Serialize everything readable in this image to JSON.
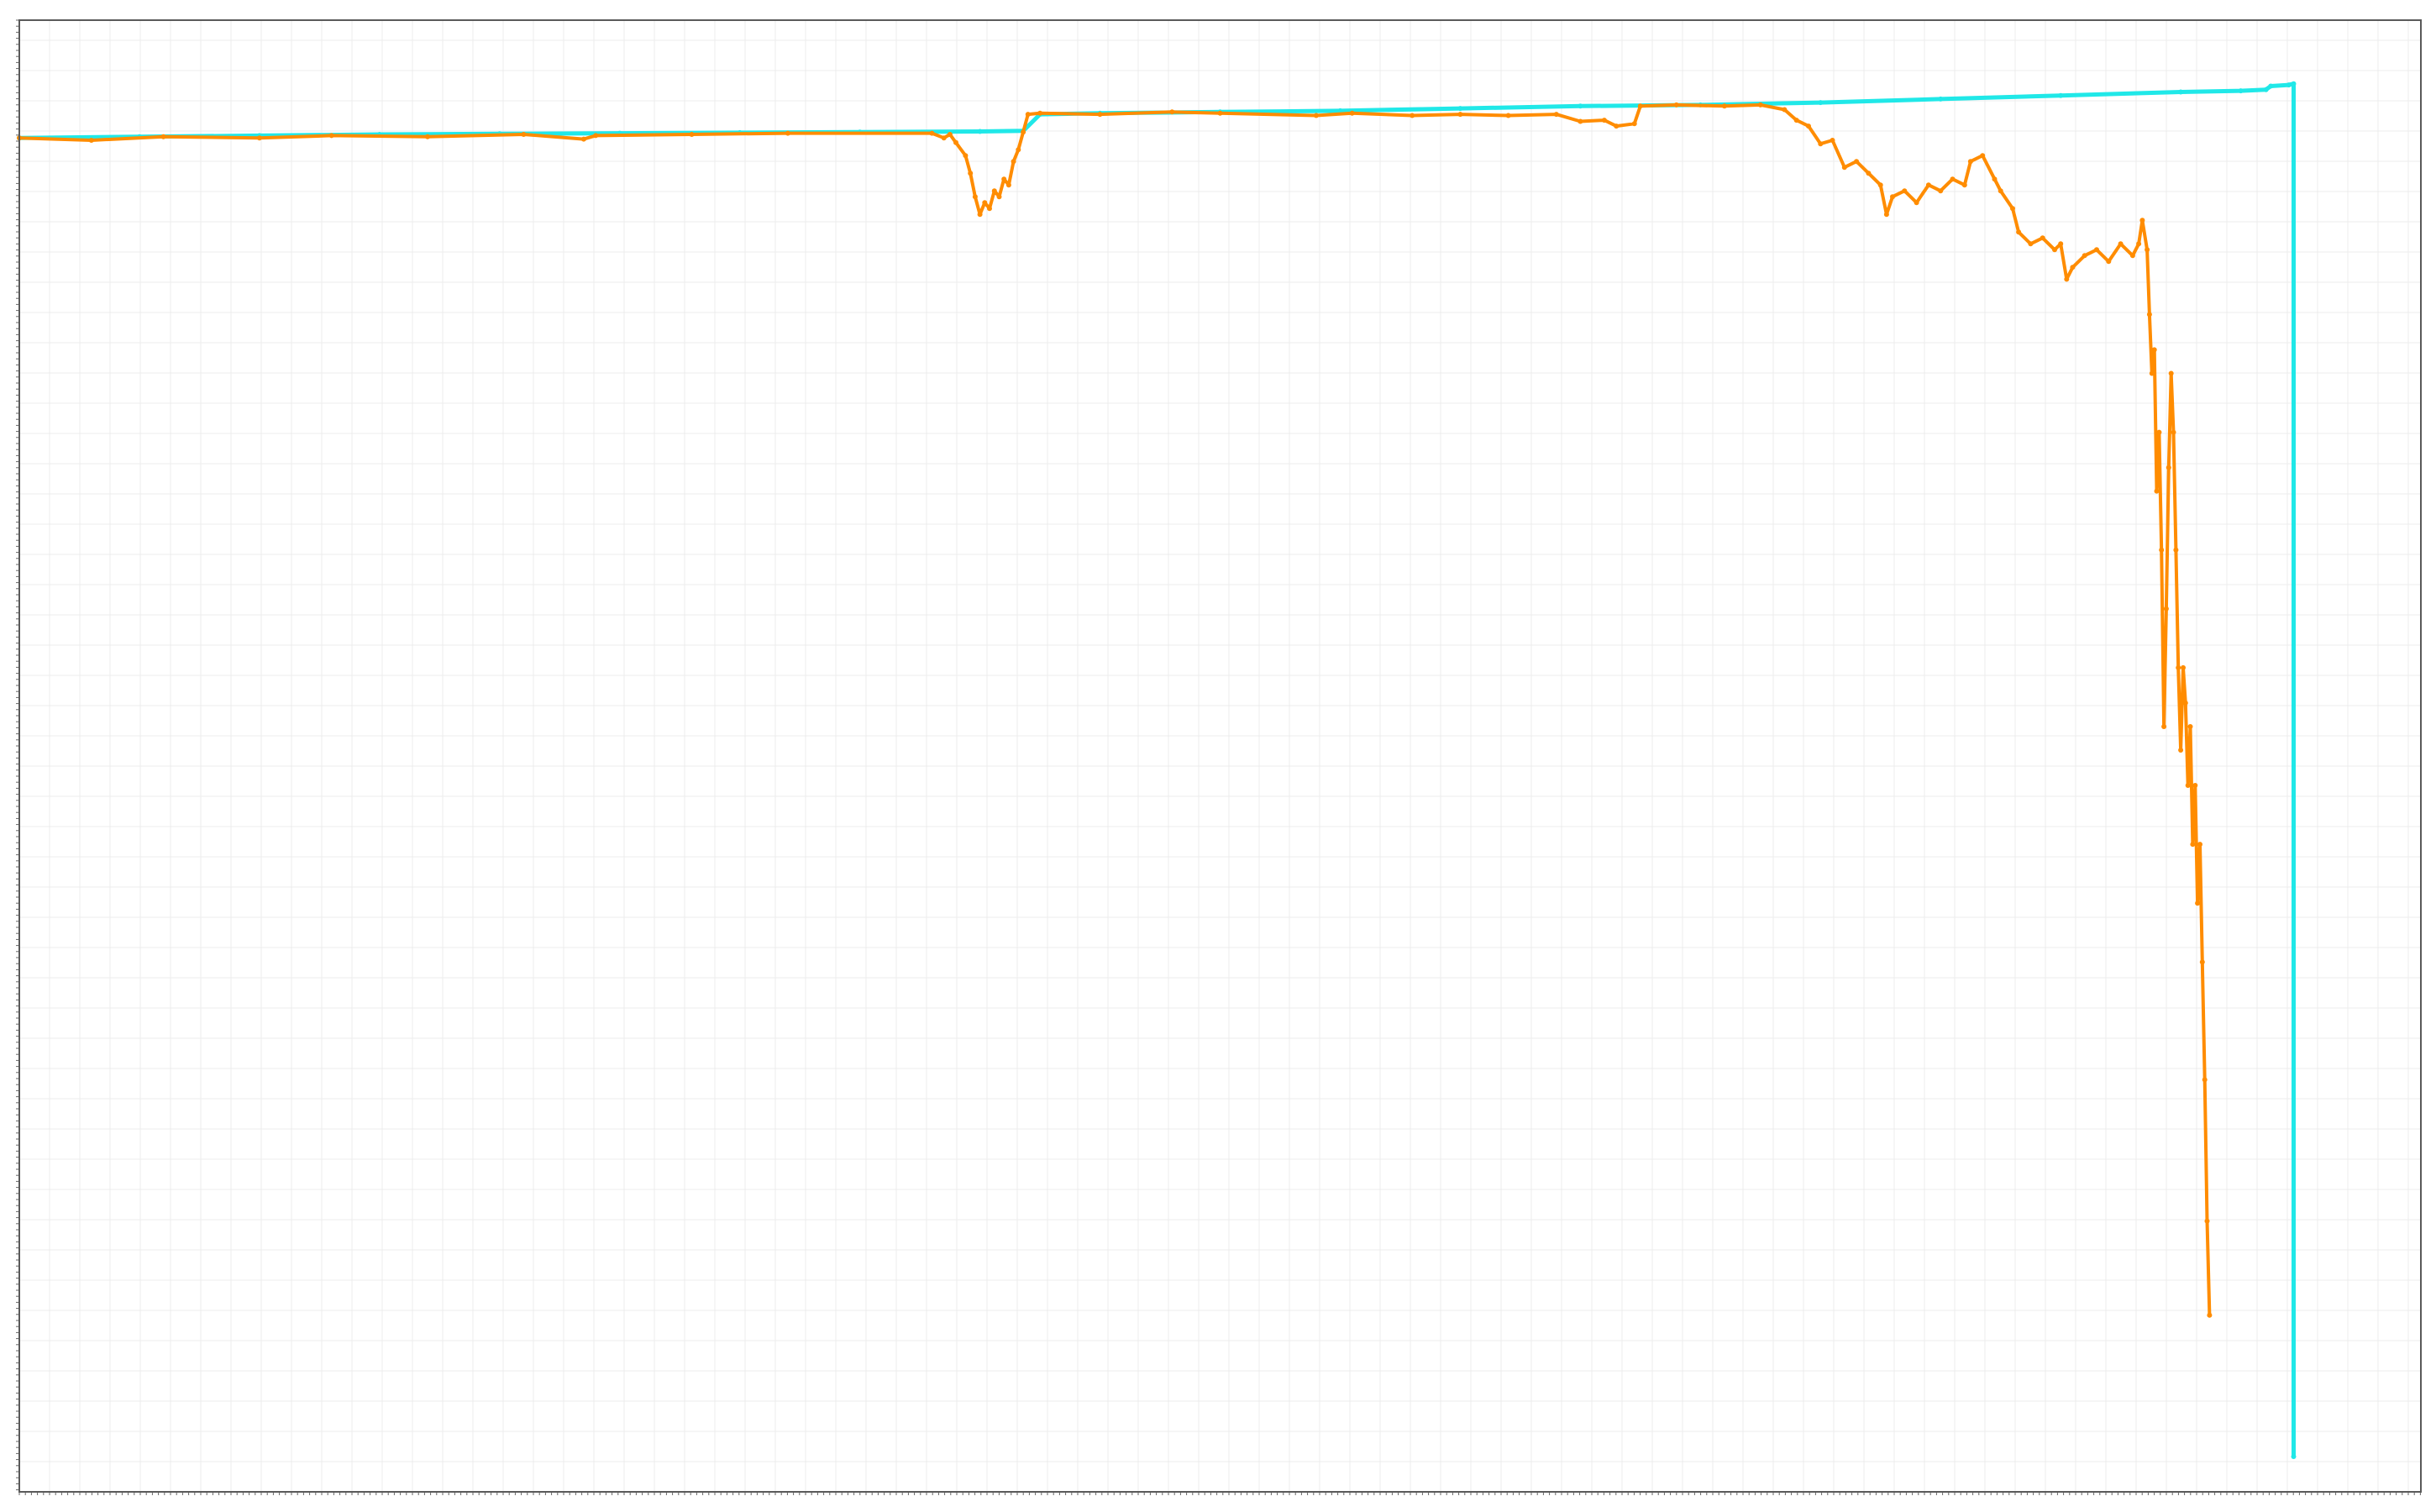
{
  "chart_data": {
    "type": "line",
    "title": "",
    "xlabel": "",
    "ylabel": "",
    "xlim": [
      0,
      2000
    ],
    "ylim": [
      -115,
      10
    ],
    "grid": true,
    "legend": "none",
    "series": [
      {
        "color": "#20e8e8",
        "marker": "dot",
        "points": [
          [
            0,
            0.0
          ],
          [
            100,
            0.1
          ],
          [
            200,
            0.2
          ],
          [
            300,
            0.3
          ],
          [
            400,
            0.35
          ],
          [
            500,
            0.4
          ],
          [
            600,
            0.45
          ],
          [
            700,
            0.5
          ],
          [
            800,
            0.55
          ],
          [
            836,
            0.6
          ],
          [
            850,
            2.0
          ],
          [
            900,
            2.1
          ],
          [
            1000,
            2.2
          ],
          [
            1100,
            2.3
          ],
          [
            1200,
            2.5
          ],
          [
            1300,
            2.7
          ],
          [
            1400,
            2.8
          ],
          [
            1500,
            3.0
          ],
          [
            1600,
            3.3
          ],
          [
            1700,
            3.6
          ],
          [
            1800,
            3.9
          ],
          [
            1850,
            4.0
          ],
          [
            1871,
            4.1
          ],
          [
            1875,
            4.4
          ],
          [
            1890,
            4.5
          ],
          [
            1894,
            4.6
          ],
          [
            1894,
            -112.0
          ]
        ]
      },
      {
        "color": "#ff8c00",
        "marker": "dot",
        "points": [
          [
            0,
            0.0
          ],
          [
            60,
            -0.2
          ],
          [
            120,
            0.1
          ],
          [
            200,
            0.0
          ],
          [
            260,
            0.2
          ],
          [
            340,
            0.1
          ],
          [
            420,
            0.3
          ],
          [
            470,
            -0.1
          ],
          [
            480,
            0.2
          ],
          [
            560,
            0.3
          ],
          [
            640,
            0.4
          ],
          [
            760,
            0.4
          ],
          [
            770,
            0.0
          ],
          [
            775,
            0.3
          ],
          [
            780,
            -0.4
          ],
          [
            788,
            -1.5
          ],
          [
            792,
            -3.0
          ],
          [
            796,
            -5.0
          ],
          [
            800,
            -6.5
          ],
          [
            804,
            -5.5
          ],
          [
            808,
            -6.0
          ],
          [
            812,
            -4.5
          ],
          [
            816,
            -5.0
          ],
          [
            820,
            -3.5
          ],
          [
            824,
            -4.0
          ],
          [
            828,
            -2.0
          ],
          [
            832,
            -1.0
          ],
          [
            836,
            0.5
          ],
          [
            840,
            2.0
          ],
          [
            850,
            2.1
          ],
          [
            900,
            2.0
          ],
          [
            960,
            2.2
          ],
          [
            1000,
            2.1
          ],
          [
            1080,
            1.9
          ],
          [
            1110,
            2.1
          ],
          [
            1160,
            1.9
          ],
          [
            1200,
            2.0
          ],
          [
            1240,
            1.9
          ],
          [
            1280,
            2.0
          ],
          [
            1300,
            1.4
          ],
          [
            1320,
            1.5
          ],
          [
            1330,
            1.0
          ],
          [
            1345,
            1.2
          ],
          [
            1350,
            2.7
          ],
          [
            1380,
            2.8
          ],
          [
            1420,
            2.7
          ],
          [
            1450,
            2.8
          ],
          [
            1470,
            2.4
          ],
          [
            1480,
            1.5
          ],
          [
            1490,
            1.0
          ],
          [
            1500,
            -0.5
          ],
          [
            1510,
            -0.2
          ],
          [
            1520,
            -2.5
          ],
          [
            1530,
            -2.0
          ],
          [
            1540,
            -3.0
          ],
          [
            1550,
            -4.0
          ],
          [
            1555,
            -6.5
          ],
          [
            1560,
            -5.0
          ],
          [
            1570,
            -4.5
          ],
          [
            1580,
            -5.5
          ],
          [
            1590,
            -4.0
          ],
          [
            1600,
            -4.5
          ],
          [
            1610,
            -3.5
          ],
          [
            1620,
            -4.0
          ],
          [
            1625,
            -2.0
          ],
          [
            1635,
            -1.5
          ],
          [
            1645,
            -3.5
          ],
          [
            1650,
            -4.5
          ],
          [
            1660,
            -6.0
          ],
          [
            1665,
            -8.0
          ],
          [
            1675,
            -9.0
          ],
          [
            1685,
            -8.5
          ],
          [
            1695,
            -9.5
          ],
          [
            1700,
            -9.0
          ],
          [
            1705,
            -12.0
          ],
          [
            1710,
            -11.0
          ],
          [
            1720,
            -10.0
          ],
          [
            1730,
            -9.5
          ],
          [
            1740,
            -10.5
          ],
          [
            1750,
            -9.0
          ],
          [
            1760,
            -10.0
          ],
          [
            1765,
            -9.0
          ],
          [
            1768,
            -7.0
          ],
          [
            1772,
            -9.5
          ],
          [
            1774,
            -15.0
          ],
          [
            1776,
            -20.0
          ],
          [
            1778,
            -18.0
          ],
          [
            1780,
            -30.0
          ],
          [
            1782,
            -25.0
          ],
          [
            1784,
            -35.0
          ],
          [
            1786,
            -50.0
          ],
          [
            1788,
            -40.0
          ],
          [
            1790,
            -28.0
          ],
          [
            1792,
            -20.0
          ],
          [
            1794,
            -25.0
          ],
          [
            1796,
            -35.0
          ],
          [
            1798,
            -45.0
          ],
          [
            1800,
            -52.0
          ],
          [
            1802,
            -45.0
          ],
          [
            1804,
            -48.0
          ],
          [
            1806,
            -55.0
          ],
          [
            1808,
            -50.0
          ],
          [
            1810,
            -60.0
          ],
          [
            1812,
            -55.0
          ],
          [
            1814,
            -65.0
          ],
          [
            1816,
            -60.0
          ],
          [
            1818,
            -70.0
          ],
          [
            1820,
            -80.0
          ],
          [
            1822,
            -92.0
          ],
          [
            1824,
            -100.0
          ]
        ]
      }
    ]
  }
}
